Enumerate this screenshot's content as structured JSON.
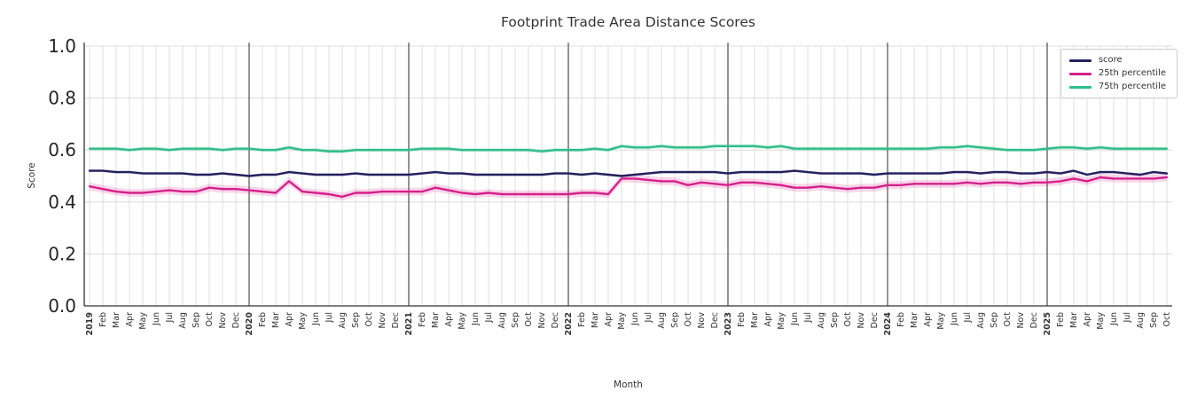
{
  "chart_data": {
    "type": "line",
    "title": "Footprint Trade Area Distance Scores",
    "xlabel": "Month",
    "ylabel": "Score",
    "ylim": [
      0,
      1
    ],
    "yticks": [
      0,
      0.2,
      0.4,
      0.6,
      0.8,
      1
    ],
    "grid": true,
    "legend_position": "upper right",
    "categories": [
      "2019",
      "Feb",
      "Mar",
      "Apr",
      "May",
      "Jun",
      "Jul",
      "Aug",
      "Sep",
      "Oct",
      "Nov",
      "Dec",
      "2020",
      "Feb",
      "Mar",
      "Apr",
      "May",
      "Jun",
      "Jul",
      "Aug",
      "Sep",
      "Oct",
      "Nov",
      "Dec",
      "2021",
      "Feb",
      "Mar",
      "Apr",
      "May",
      "Jun",
      "Jul",
      "Aug",
      "Sep",
      "Oct",
      "Nov",
      "Dec",
      "2022",
      "Feb",
      "Mar",
      "Apr",
      "May",
      "Jun",
      "Jul",
      "Aug",
      "Sep",
      "Oct",
      "Nov",
      "Dec",
      "2023",
      "Feb",
      "Mar",
      "Apr",
      "May",
      "Jun",
      "Jul",
      "Aug",
      "Sep",
      "Oct",
      "Nov",
      "Dec",
      "2024",
      "Feb",
      "Mar",
      "Apr",
      "May",
      "Jun",
      "Jul",
      "Aug",
      "Sep",
      "Oct",
      "Nov",
      "Dec",
      "2025",
      "Feb",
      "Mar",
      "Apr",
      "May",
      "Jun",
      "Jul",
      "Aug",
      "Sep",
      "Oct"
    ],
    "series": [
      {
        "name": "score",
        "color": "#23215f",
        "band": 0.005,
        "values": [
          0.52,
          0.52,
          0.515,
          0.515,
          0.51,
          0.51,
          0.51,
          0.51,
          0.505,
          0.505,
          0.51,
          0.505,
          0.5,
          0.505,
          0.505,
          0.515,
          0.51,
          0.505,
          0.505,
          0.505,
          0.51,
          0.505,
          0.505,
          0.505,
          0.505,
          0.51,
          0.515,
          0.51,
          0.51,
          0.505,
          0.505,
          0.505,
          0.505,
          0.505,
          0.505,
          0.51,
          0.51,
          0.505,
          0.51,
          0.505,
          0.5,
          0.505,
          0.51,
          0.515,
          0.515,
          0.515,
          0.515,
          0.515,
          0.51,
          0.515,
          0.515,
          0.515,
          0.515,
          0.52,
          0.515,
          0.51,
          0.51,
          0.51,
          0.51,
          0.505,
          0.51,
          0.51,
          0.51,
          0.51,
          0.51,
          0.515,
          0.515,
          0.51,
          0.515,
          0.515,
          0.51,
          0.51,
          0.515,
          0.51,
          0.52,
          0.505,
          0.515,
          0.515,
          0.51,
          0.505,
          0.515,
          0.51
        ]
      },
      {
        "name": "25th percentile",
        "color": "#d6208d",
        "band": 0.015,
        "values": [
          0.46,
          0.45,
          0.44,
          0.435,
          0.435,
          0.44,
          0.445,
          0.44,
          0.44,
          0.455,
          0.45,
          0.45,
          0.445,
          0.44,
          0.435,
          0.48,
          0.44,
          0.435,
          0.43,
          0.42,
          0.435,
          0.435,
          0.44,
          0.44,
          0.44,
          0.44,
          0.455,
          0.445,
          0.435,
          0.43,
          0.435,
          0.43,
          0.43,
          0.43,
          0.43,
          0.43,
          0.43,
          0.435,
          0.435,
          0.43,
          0.49,
          0.49,
          0.485,
          0.48,
          0.48,
          0.465,
          0.475,
          0.47,
          0.465,
          0.475,
          0.475,
          0.47,
          0.465,
          0.455,
          0.455,
          0.46,
          0.455,
          0.45,
          0.455,
          0.455,
          0.465,
          0.465,
          0.47,
          0.47,
          0.47,
          0.47,
          0.475,
          0.47,
          0.475,
          0.475,
          0.47,
          0.475,
          0.475,
          0.48,
          0.49,
          0.48,
          0.495,
          0.49,
          0.49,
          0.49,
          0.49,
          0.495
        ]
      },
      {
        "name": "75th percentile",
        "color": "#2ebd8b",
        "band": 0.008,
        "values": [
          0.605,
          0.605,
          0.605,
          0.6,
          0.605,
          0.605,
          0.6,
          0.605,
          0.605,
          0.605,
          0.6,
          0.605,
          0.605,
          0.6,
          0.6,
          0.61,
          0.6,
          0.6,
          0.595,
          0.595,
          0.6,
          0.6,
          0.6,
          0.6,
          0.6,
          0.605,
          0.605,
          0.605,
          0.6,
          0.6,
          0.6,
          0.6,
          0.6,
          0.6,
          0.595,
          0.6,
          0.6,
          0.6,
          0.605,
          0.6,
          0.615,
          0.61,
          0.61,
          0.615,
          0.61,
          0.61,
          0.61,
          0.615,
          0.615,
          0.615,
          0.615,
          0.61,
          0.615,
          0.605,
          0.605,
          0.605,
          0.605,
          0.605,
          0.605,
          0.605,
          0.605,
          0.605,
          0.605,
          0.605,
          0.61,
          0.61,
          0.615,
          0.61,
          0.605,
          0.6,
          0.6,
          0.6,
          0.605,
          0.61,
          0.61,
          0.605,
          0.61,
          0.605,
          0.605,
          0.605,
          0.605,
          0.605
        ]
      }
    ],
    "style": {
      "grid_color": "#dcdcdc",
      "year_line_color": "#3c3c3c",
      "text_color": "#333333",
      "background": "#ffffff"
    }
  }
}
